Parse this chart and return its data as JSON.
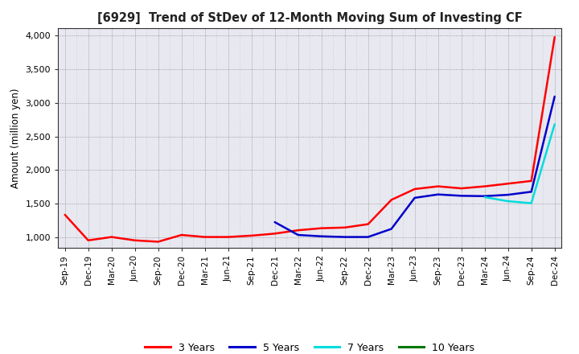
{
  "title": "[6929]  Trend of StDev of 12-Month Moving Sum of Investing CF",
  "ylabel": "Amount (million yen)",
  "background_color": "#ffffff",
  "plot_bg_color": "#e8e8f0",
  "grid_color": "#aaaaaa",
  "ylim": [
    850,
    4100
  ],
  "yticks": [
    1000,
    1500,
    2000,
    2500,
    3000,
    3500,
    4000
  ],
  "ytick_labels": [
    "1,000",
    "1,500",
    "2,000",
    "2,500",
    "3,000",
    "3,500",
    "4,000"
  ],
  "series": {
    "3 Years": {
      "color": "#ff0000",
      "data": [
        [
          "Sep-19",
          1340
        ],
        [
          "Dec-19",
          960
        ],
        [
          "Mar-20",
          1010
        ],
        [
          "Jun-20",
          960
        ],
        [
          "Sep-20",
          940
        ],
        [
          "Dec-20",
          1040
        ],
        [
          "Mar-21",
          1010
        ],
        [
          "Jun-21",
          1010
        ],
        [
          "Sep-21",
          1030
        ],
        [
          "Dec-21",
          1060
        ],
        [
          "Mar-22",
          1110
        ],
        [
          "Jun-22",
          1140
        ],
        [
          "Sep-22",
          1150
        ],
        [
          "Dec-22",
          1200
        ],
        [
          "Mar-23",
          1560
        ],
        [
          "Jun-23",
          1720
        ],
        [
          "Sep-23",
          1760
        ],
        [
          "Dec-23",
          1730
        ],
        [
          "Mar-24",
          1760
        ],
        [
          "Jun-24",
          1800
        ],
        [
          "Sep-24",
          1840
        ],
        [
          "Dec-24",
          3970
        ]
      ]
    },
    "5 Years": {
      "color": "#0000cc",
      "data": [
        [
          "Dec-21",
          1230
        ],
        [
          "Mar-22",
          1040
        ],
        [
          "Jun-22",
          1020
        ],
        [
          "Sep-22",
          1010
        ],
        [
          "Dec-22",
          1010
        ],
        [
          "Mar-23",
          1130
        ],
        [
          "Jun-23",
          1590
        ],
        [
          "Sep-23",
          1640
        ],
        [
          "Dec-23",
          1620
        ],
        [
          "Mar-24",
          1615
        ],
        [
          "Jun-24",
          1635
        ],
        [
          "Sep-24",
          1680
        ],
        [
          "Dec-24",
          3090
        ]
      ]
    },
    "7 Years": {
      "color": "#00dddd",
      "data": [
        [
          "Mar-24",
          1600
        ],
        [
          "Jun-24",
          1540
        ],
        [
          "Sep-24",
          1510
        ],
        [
          "Dec-24",
          2680
        ]
      ]
    },
    "10 Years": {
      "color": "#007700",
      "data": []
    }
  },
  "xtick_labels": [
    "Sep-19",
    "Dec-19",
    "Mar-20",
    "Jun-20",
    "Sep-20",
    "Dec-20",
    "Mar-21",
    "Jun-21",
    "Sep-21",
    "Dec-21",
    "Mar-22",
    "Jun-22",
    "Sep-22",
    "Dec-22",
    "Mar-23",
    "Jun-23",
    "Sep-23",
    "Dec-23",
    "Mar-24",
    "Jun-24",
    "Sep-24",
    "Dec-24"
  ],
  "legend_colors": [
    "#ff0000",
    "#0000cc",
    "#00dddd",
    "#007700"
  ],
  "legend_labels": [
    "3 Years",
    "5 Years",
    "7 Years",
    "10 Years"
  ]
}
